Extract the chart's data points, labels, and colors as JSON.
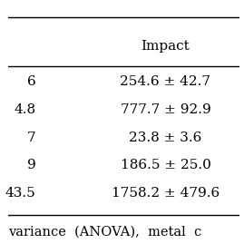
{
  "header_col": "Impact",
  "left_col_values": [
    "6",
    "4.8",
    "7",
    "9",
    "43.5"
  ],
  "right_col_values": [
    "254.6 ± 42.7",
    "777.7 ± 92.9",
    "23.8 ± 3.6",
    "186.5 ± 25.0",
    "1758.2 ± 479.6"
  ],
  "footer_text": "variance  (ANOVA),  metal  c",
  "bg_color": "#ffffff",
  "font_size": 11
}
